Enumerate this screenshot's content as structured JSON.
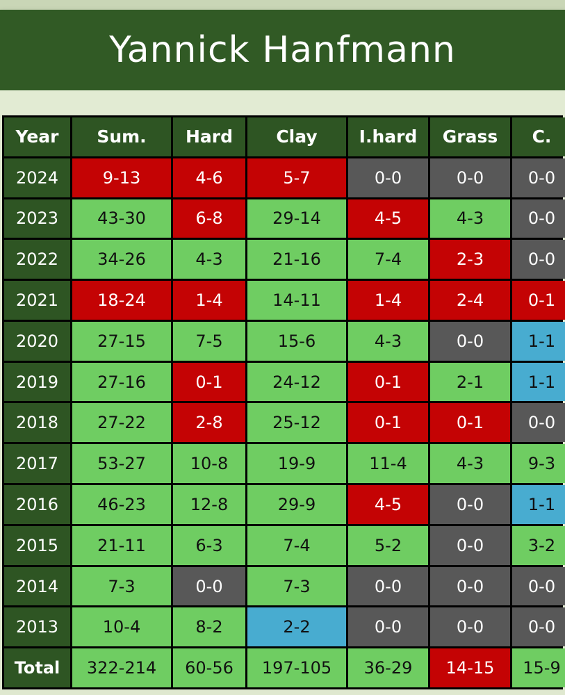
{
  "title": "Yannick Hanfmann",
  "colors": {
    "header_bg": "#2e5523",
    "positive": "#6fcd62",
    "negative": "#c40304",
    "neutral": "#585858",
    "even": "#48acd0"
  },
  "headers": [
    "Year",
    "Sum.",
    "Hard",
    "Clay",
    "I.hard",
    "Grass",
    "C."
  ],
  "rows": [
    {
      "year": "2024",
      "values": [
        "9-13",
        "4-6",
        "5-7",
        "0-0",
        "0-0",
        "0-0"
      ],
      "status": [
        "r",
        "r",
        "r",
        "n",
        "n",
        "n"
      ]
    },
    {
      "year": "2023",
      "values": [
        "43-30",
        "6-8",
        "29-14",
        "4-5",
        "4-3",
        "0-0"
      ],
      "status": [
        "g",
        "r",
        "g",
        "r",
        "g",
        "n"
      ]
    },
    {
      "year": "2022",
      "values": [
        "34-26",
        "4-3",
        "21-16",
        "7-4",
        "2-3",
        "0-0"
      ],
      "status": [
        "g",
        "g",
        "g",
        "g",
        "r",
        "n"
      ]
    },
    {
      "year": "2021",
      "values": [
        "18-24",
        "1-4",
        "14-11",
        "1-4",
        "2-4",
        "0-1"
      ],
      "status": [
        "r",
        "r",
        "g",
        "r",
        "r",
        "r"
      ]
    },
    {
      "year": "2020",
      "values": [
        "27-15",
        "7-5",
        "15-6",
        "4-3",
        "0-0",
        "1-1"
      ],
      "status": [
        "g",
        "g",
        "g",
        "g",
        "n",
        "b"
      ]
    },
    {
      "year": "2019",
      "values": [
        "27-16",
        "0-1",
        "24-12",
        "0-1",
        "2-1",
        "1-1"
      ],
      "status": [
        "g",
        "r",
        "g",
        "r",
        "g",
        "b"
      ]
    },
    {
      "year": "2018",
      "values": [
        "27-22",
        "2-8",
        "25-12",
        "0-1",
        "0-1",
        "0-0"
      ],
      "status": [
        "g",
        "r",
        "g",
        "r",
        "r",
        "n"
      ]
    },
    {
      "year": "2017",
      "values": [
        "53-27",
        "10-8",
        "19-9",
        "11-4",
        "4-3",
        "9-3"
      ],
      "status": [
        "g",
        "g",
        "g",
        "g",
        "g",
        "g"
      ]
    },
    {
      "year": "2016",
      "values": [
        "46-23",
        "12-8",
        "29-9",
        "4-5",
        "0-0",
        "1-1"
      ],
      "status": [
        "g",
        "g",
        "g",
        "r",
        "n",
        "b"
      ]
    },
    {
      "year": "2015",
      "values": [
        "21-11",
        "6-3",
        "7-4",
        "5-2",
        "0-0",
        "3-2"
      ],
      "status": [
        "g",
        "g",
        "g",
        "g",
        "n",
        "g"
      ]
    },
    {
      "year": "2014",
      "values": [
        "7-3",
        "0-0",
        "7-3",
        "0-0",
        "0-0",
        "0-0"
      ],
      "status": [
        "g",
        "n",
        "g",
        "n",
        "n",
        "n"
      ]
    },
    {
      "year": "2013",
      "values": [
        "10-4",
        "8-2",
        "2-2",
        "0-0",
        "0-0",
        "0-0"
      ],
      "status": [
        "g",
        "g",
        "b",
        "n",
        "n",
        "n"
      ]
    }
  ],
  "total": {
    "label": "Total",
    "values": [
      "322-214",
      "60-56",
      "197-105",
      "36-29",
      "14-15",
      "15-9"
    ],
    "status": [
      "g",
      "g",
      "g",
      "g",
      "r",
      "g"
    ]
  }
}
